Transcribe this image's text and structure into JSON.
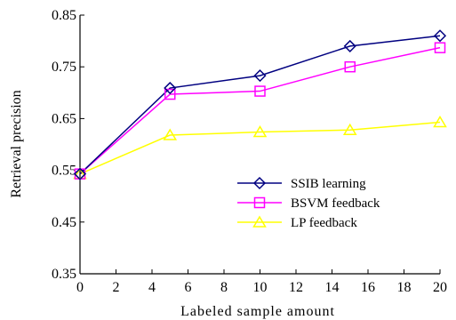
{
  "chart_data": {
    "type": "line",
    "title": "",
    "xlabel": "Labeled sample amount",
    "ylabel": "Retrieval precision",
    "xlim": [
      0,
      20
    ],
    "ylim": [
      0.35,
      0.85
    ],
    "x": [
      0,
      5,
      10,
      15,
      20
    ],
    "x_ticks": [
      0,
      2,
      4,
      6,
      8,
      10,
      12,
      14,
      16,
      18,
      20
    ],
    "y_ticks": [
      0.35,
      0.45,
      0.55,
      0.65,
      0.75,
      0.85
    ],
    "x_tick_labels": [
      "0",
      "2",
      "4",
      "6",
      "8",
      "10",
      "12",
      "14",
      "16",
      "18",
      "20"
    ],
    "y_tick_labels": [
      "0.35",
      "0.45",
      "0.55",
      "0.65",
      "0.75",
      "0.85"
    ],
    "grid": false,
    "legend_position": "bottom-right",
    "series": [
      {
        "name": "SSIB learning",
        "color": "#000080",
        "marker": "diamond",
        "values": [
          0.543,
          0.709,
          0.733,
          0.79,
          0.81
        ]
      },
      {
        "name": "BSVM feedback",
        "color": "#ff00ff",
        "marker": "square",
        "values": [
          0.543,
          0.697,
          0.703,
          0.75,
          0.787
        ]
      },
      {
        "name": "LP feedback",
        "color": "#ffff00",
        "marker": "triangle",
        "values": [
          0.543,
          0.618,
          0.624,
          0.628,
          0.643
        ]
      }
    ]
  }
}
